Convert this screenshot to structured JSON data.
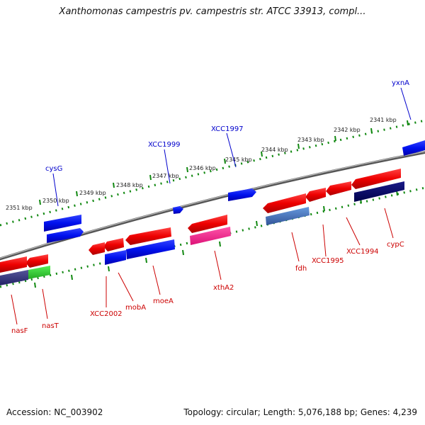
{
  "title": "Xanthomonas campestris pv. campestris str. ATCC 33913, compl...",
  "footer": {
    "accession": "Accession: NC_003902",
    "summary": "Topology: circular; Length: 5,076,188 bp; Genes: 4,239"
  },
  "colors": {
    "forward_gene": "#0000cc",
    "reverse_gene": "#cc0000",
    "feature_red": "#ff0000",
    "feature_blue": "#0000ee",
    "feature_navy": "#000066",
    "feature_magenta": "#ee2288",
    "feature_lightblue": "#4477cc",
    "feature_green": "#33cc33",
    "feature_purple": "#333377",
    "tick": "#118811",
    "backbone": "#888888"
  },
  "scale_ticks": [
    {
      "label": "2341 kbp"
    },
    {
      "label": "2342 kbp"
    },
    {
      "label": "2343 kbp"
    },
    {
      "label": "2344 kbp"
    },
    {
      "label": "2345 kbp"
    },
    {
      "label": "2346 kbp"
    },
    {
      "label": "2347 kbp"
    },
    {
      "label": "2348 kbp"
    },
    {
      "label": "2349 kbp"
    },
    {
      "label": "2350 kbp"
    },
    {
      "label": "2351 kbp"
    }
  ],
  "gene_labels": {
    "forward": [
      "yxnA",
      "XCC1997",
      "XCC1999",
      "cysG"
    ],
    "reverse": [
      "cypC",
      "XCC1994",
      "XCC1995",
      "fdh",
      "xthA2",
      "moeA",
      "mobA",
      "XCC2002",
      "nasT",
      "nasF"
    ]
  }
}
